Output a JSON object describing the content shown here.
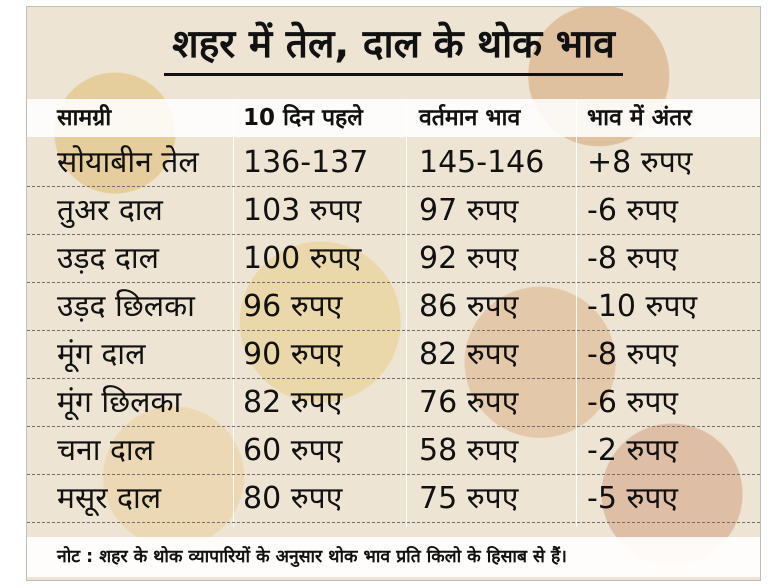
{
  "title": "शहर में तेल, दाल के थोक भाव",
  "table": {
    "headers": [
      "सामग्री",
      "10 दिन पहले",
      "वर्तमान भाव",
      "भाव में अंतर"
    ],
    "rows": [
      [
        "सोयाबीन तेल",
        "136-137",
        "145-146",
        "+8 रुपए"
      ],
      [
        "तुअर दाल",
        "103 रुपए",
        "97 रुपए",
        "-6 रुपए"
      ],
      [
        "उड़द दाल",
        "100 रुपए",
        "92 रुपए",
        "-8 रुपए"
      ],
      [
        "उड़द छिलका",
        "96 रुपए",
        "86 रुपए",
        "-10 रुपए"
      ],
      [
        "मूंग दाल",
        "90 रुपए",
        "82 रुपए",
        "-8 रुपए"
      ],
      [
        "मूंग छिलका",
        "82 रुपए",
        "76 रुपए",
        "-6 रुपए"
      ],
      [
        "चना दाल",
        "60 रुपए",
        "58 रुपए",
        "-2 रुपए"
      ],
      [
        "मसूर दाल",
        "80 रुपए",
        "75 रुपए",
        "-5 रुपए"
      ]
    ]
  },
  "note": "नोट : शहर के थोक व्यापारियों के अनुसार थोक भाव प्रति किलो के हिसाब से हैं।"
}
